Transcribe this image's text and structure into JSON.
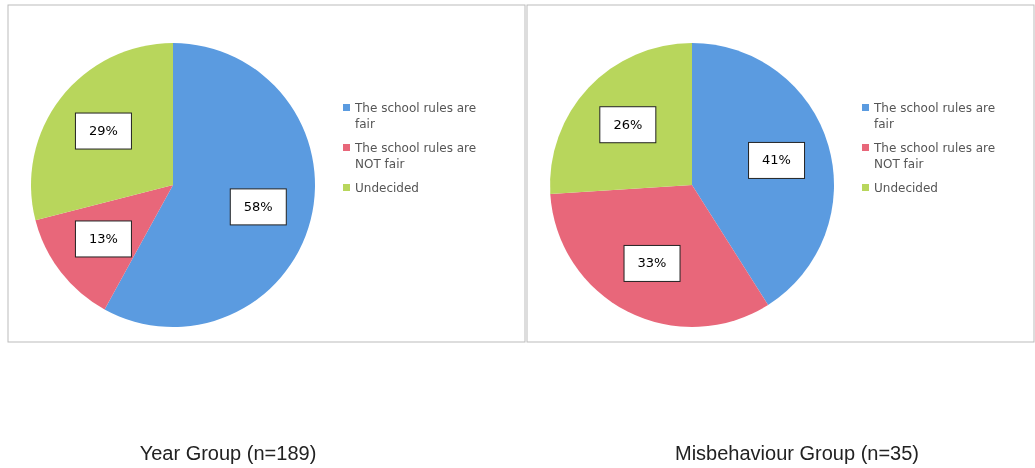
{
  "chart_data": [
    {
      "type": "pie",
      "title": "Year Group (n=189)",
      "categories": [
        "The school rules are fair",
        "The school rules are NOT fair",
        "Undecided"
      ],
      "values": [
        58,
        13,
        29
      ],
      "value_labels": [
        "58%",
        "13%",
        "29%"
      ],
      "colors": [
        "#5b9be0",
        "#e8677a",
        "#b8d65c"
      ],
      "legend": "right"
    },
    {
      "type": "pie",
      "title": "Misbehaviour Group (n=35)",
      "categories": [
        "The school rules are fair",
        "The school rules are NOT fair",
        "Undecided"
      ],
      "values": [
        41,
        33,
        26
      ],
      "value_labels": [
        "41%",
        "33%",
        "26%"
      ],
      "colors": [
        "#5b9be0",
        "#e8677a",
        "#b8d65c"
      ],
      "legend": "right"
    }
  ]
}
